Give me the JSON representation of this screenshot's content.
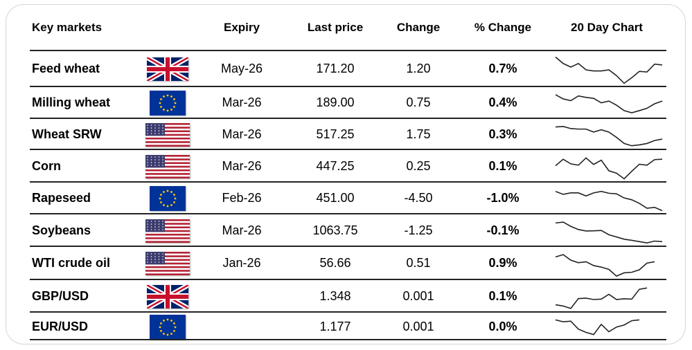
{
  "header": {
    "market": "Key markets",
    "expiry": "Expiry",
    "last_price": "Last price",
    "change": "Change",
    "pct_change": "% Change",
    "chart": "20 Day Chart"
  },
  "colors": {
    "positive": "#4e8a2a",
    "negative": "#b01818"
  },
  "rows": [
    {
      "name": "Feed wheat",
      "flag": "uk-flag",
      "expiry": "May-26",
      "last": "171.20",
      "change": "1.20",
      "pct": "0.7%",
      "dir": "pos",
      "spark": [
        125,
        95,
        78,
        95,
        65,
        60,
        60,
        65,
        38,
        2,
        28,
        58,
        55,
        92,
        88
      ]
    },
    {
      "name": "Milling wheat",
      "flag": "eu-flag",
      "expiry": "Mar-26",
      "last": "189.00",
      "change": "0.75",
      "pct": "0.4%",
      "dir": "pos",
      "spark": [
        115,
        92,
        82,
        108,
        100,
        95,
        70,
        80,
        57,
        27,
        15,
        27,
        40,
        65,
        80
      ]
    },
    {
      "name": "Wheat SRW",
      "flag": "us-flag",
      "expiry": "Mar-26",
      "last": "517.25",
      "change": "1.75",
      "pct": "0.3%",
      "dir": "pos",
      "spark": [
        112,
        115,
        103,
        100,
        100,
        83,
        96,
        83,
        53,
        18,
        5,
        10,
        18,
        35,
        43
      ]
    },
    {
      "name": "Corn",
      "flag": "us-flag",
      "expiry": "Mar-26",
      "last": "447.25",
      "change": "0.25",
      "pct": "0.1%",
      "dir": "pos",
      "spark": [
        72,
        107,
        82,
        75,
        114,
        79,
        102,
        45,
        32,
        2,
        42,
        80,
        75,
        105,
        107
      ]
    },
    {
      "name": "Rapeseed",
      "flag": "eu-flag",
      "expiry": "Feb-26",
      "last": "451.00",
      "change": "-4.50",
      "pct": "-1.0%",
      "dir": "neg",
      "spark": [
        108,
        92,
        100,
        100,
        83,
        100,
        108,
        98,
        95,
        72,
        62,
        42,
        15,
        20,
        2
      ]
    },
    {
      "name": "Soybeans",
      "flag": "us-flag",
      "expiry": "Mar-26",
      "last": "1063.75",
      "change": "-1.25",
      "pct": "-0.1%",
      "dir": "neg",
      "spark": [
        110,
        115,
        92,
        75,
        67,
        68,
        70,
        47,
        35,
        23,
        17,
        10,
        3,
        13,
        10
      ]
    },
    {
      "name": "WTI crude oil",
      "flag": "us-flag",
      "expiry": "Jan-26",
      "last": "56.66",
      "change": "0.51",
      "pct": "0.9%",
      "dir": "pos",
      "spark": [
        103,
        115,
        86,
        73,
        78,
        58,
        50,
        38,
        3,
        20,
        23,
        36,
        71,
        78
      ]
    },
    {
      "name": "GBP/USD",
      "flag": "uk-flag",
      "expiry": "",
      "last": "1.348",
      "change": "0.001",
      "pct": "0.1%",
      "dir": "pos",
      "spark": [
        24,
        17,
        4,
        57,
        59,
        52,
        54,
        80,
        52,
        56,
        54,
        107,
        114
      ]
    },
    {
      "name": "EUR/USD",
      "flag": "eu-flag",
      "expiry": "",
      "last": "1.177",
      "change": "0.001",
      "pct": "0.0%",
      "dir": "pos",
      "spark": [
        115,
        103,
        107,
        57,
        37,
        23,
        87,
        41,
        70,
        83,
        110,
        115
      ]
    }
  ]
}
